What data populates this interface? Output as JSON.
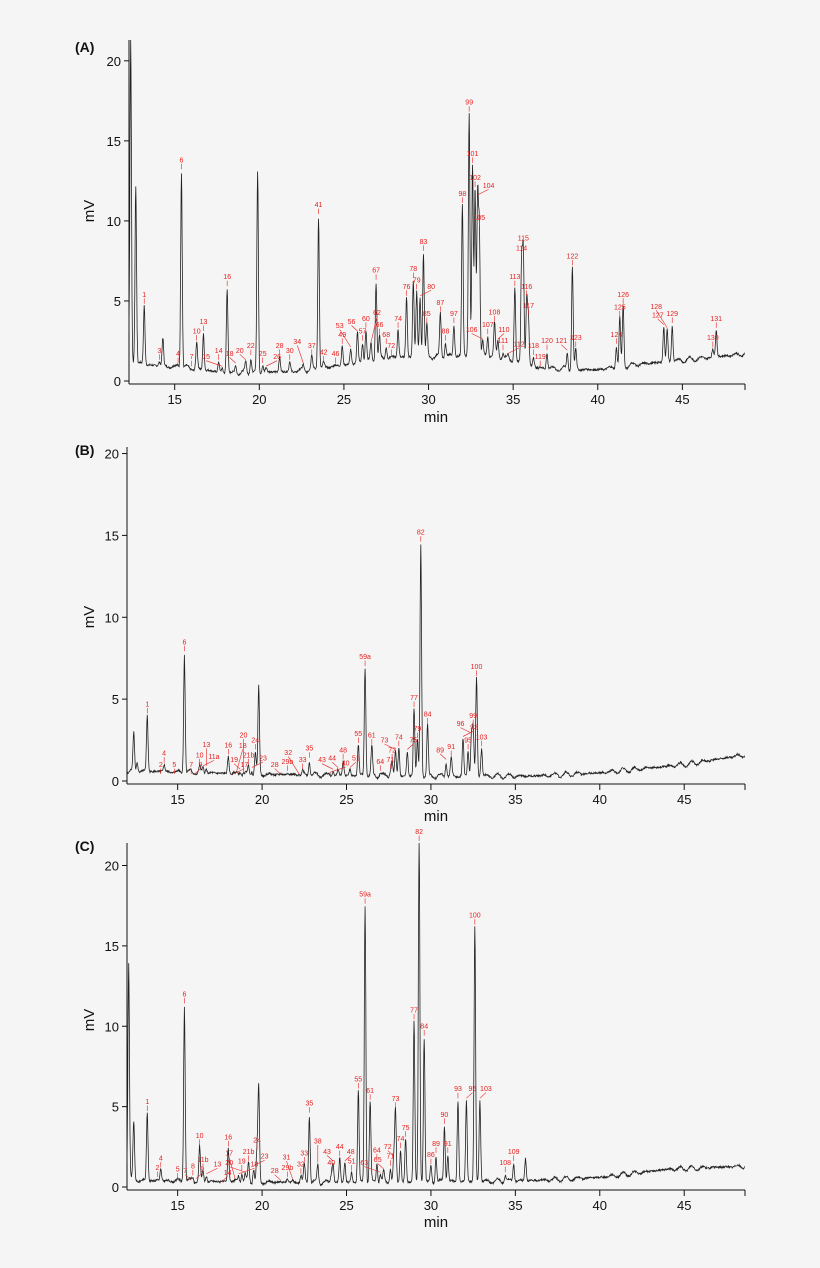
{
  "chart_data": [
    {
      "type": "line",
      "panel": "(A)",
      "xlabel": "min",
      "ylabel": "mV",
      "xlim": [
        12.3,
        48.7
      ],
      "ylim": [
        0,
        21.3
      ],
      "xticks": [
        15,
        20,
        25,
        30,
        35,
        40,
        45
      ],
      "yticks": [
        0,
        5,
        10,
        15,
        20
      ],
      "label_color": "#e8201f",
      "trace_color": "#222222",
      "baseline": [
        [
          12.3,
          1.2
        ],
        [
          13.5,
          1.0
        ],
        [
          16,
          0.8
        ],
        [
          18,
          0.5
        ],
        [
          22,
          0.6
        ],
        [
          25,
          1.0
        ],
        [
          28,
          1.5
        ],
        [
          34,
          1.6
        ],
        [
          36.5,
          0.8
        ],
        [
          40,
          0.7
        ],
        [
          42,
          1.0
        ],
        [
          45,
          1.3
        ],
        [
          48.7,
          1.7
        ]
      ],
      "peaks": [
        [
          "",
          12.4,
          21.3
        ],
        [
          "",
          12.7,
          12.3
        ],
        [
          "1",
          13.2,
          4.7
        ],
        [
          "3",
          14.1,
          1.2
        ],
        [
          "",
          14.3,
          2.7
        ],
        [
          "4",
          15.2,
          1.0
        ],
        [
          "6",
          15.4,
          13.1
        ],
        [
          "7",
          16.0,
          0.8
        ],
        [
          "10",
          16.3,
          2.4
        ],
        [
          "13",
          16.7,
          3.0
        ],
        [
          "14",
          17.6,
          1.2
        ],
        [
          "15",
          17.8,
          0.8
        ],
        [
          "16",
          18.1,
          5.8
        ],
        [
          "18",
          18.6,
          1.0
        ],
        [
          "20",
          19.2,
          1.2
        ],
        [
          "22",
          19.5,
          1.5
        ],
        [
          "",
          19.9,
          13.0
        ],
        [
          "25",
          20.2,
          1.0
        ],
        [
          "26",
          20.4,
          0.8
        ],
        [
          "28",
          21.2,
          1.5
        ],
        [
          "30",
          21.8,
          1.2
        ],
        [
          "34",
          22.6,
          1.0
        ],
        [
          "37",
          23.1,
          1.5
        ],
        [
          "41",
          23.5,
          10.3
        ],
        [
          "42",
          23.8,
          1.1
        ],
        [
          "46",
          24.5,
          1.0
        ],
        [
          "49",
          24.9,
          2.2
        ],
        [
          "53",
          25.4,
          2.0
        ],
        [
          "56",
          25.8,
          3.0
        ],
        [
          "57",
          26.1,
          2.4
        ],
        [
          "60",
          26.3,
          3.2
        ],
        [
          "62",
          26.6,
          2.3
        ],
        [
          "67",
          26.9,
          6.2
        ],
        [
          "66",
          27.1,
          2.8
        ],
        [
          "68",
          27.5,
          2.2
        ],
        [
          "72",
          27.8,
          1.5
        ],
        [
          "74",
          28.2,
          3.2
        ],
        [
          "76",
          28.7,
          5.2
        ],
        [
          "78",
          29.1,
          6.3
        ],
        [
          "79",
          29.3,
          5.6
        ],
        [
          "80",
          29.5,
          5.2
        ],
        [
          "83",
          29.7,
          8.0
        ],
        [
          "85",
          29.9,
          3.5
        ],
        [
          "87",
          30.7,
          4.2
        ],
        [
          "88",
          31.0,
          2.4
        ],
        [
          "97",
          31.5,
          3.5
        ],
        [
          "98",
          32.0,
          11.0
        ],
        [
          "99",
          32.4,
          16.7
        ],
        [
          "101",
          32.6,
          13.5
        ],
        [
          "102",
          32.75,
          12.0
        ],
        [
          "104",
          32.9,
          11.5
        ],
        [
          "105",
          33.0,
          9.5
        ],
        [
          "106",
          33.2,
          2.5
        ],
        [
          "107",
          33.5,
          2.8
        ],
        [
          "108",
          33.9,
          3.6
        ],
        [
          "110",
          34.1,
          2.5
        ],
        [
          "111",
          34.4,
          1.8
        ],
        [
          "112",
          34.7,
          1.6
        ],
        [
          "113",
          35.1,
          5.8
        ],
        [
          "114",
          35.5,
          7.6
        ],
        [
          "115",
          35.6,
          8.2
        ],
        [
          "116",
          35.8,
          5.2
        ],
        [
          "117",
          35.9,
          4.0
        ],
        [
          "118",
          36.2,
          1.5
        ],
        [
          "119",
          36.6,
          0.8
        ],
        [
          "120",
          37.0,
          1.8
        ],
        [
          "121",
          38.2,
          1.8
        ],
        [
          "122",
          38.5,
          7.1
        ],
        [
          "123",
          38.7,
          2.0
        ],
        [
          "124",
          41.1,
          2.2
        ],
        [
          "125",
          41.3,
          3.9
        ],
        [
          "126",
          41.5,
          4.7
        ],
        [
          "127",
          43.9,
          3.4
        ],
        [
          "128",
          44.1,
          3.2
        ],
        [
          "129",
          44.4,
          3.5
        ],
        [
          "130",
          46.8,
          2.0
        ],
        [
          "131",
          47.0,
          3.2
        ]
      ]
    },
    {
      "type": "line",
      "panel": "(B)",
      "xlabel": "min",
      "ylabel": "mV",
      "xlim": [
        12.0,
        48.6
      ],
      "ylim": [
        0,
        20.4
      ],
      "xticks": [
        15,
        20,
        25,
        30,
        35,
        40,
        45
      ],
      "yticks": [
        0,
        5,
        10,
        15,
        20
      ],
      "label_color": "#e8201f",
      "trace_color": "#222222",
      "baseline": [
        [
          12.0,
          0.6
        ],
        [
          13,
          0.6
        ],
        [
          20,
          0.4
        ],
        [
          30,
          0.3
        ],
        [
          36,
          0.3
        ],
        [
          40,
          0.5
        ],
        [
          45,
          1.0
        ],
        [
          48.6,
          1.6
        ]
      ],
      "peaks": [
        [
          "",
          12.4,
          2.9
        ],
        [
          "",
          12.6,
          1.2
        ],
        [
          "1",
          13.2,
          4.0
        ],
        [
          "2",
          14.0,
          0.3
        ],
        [
          "4",
          14.2,
          1.0
        ],
        [
          "5",
          14.8,
          0.3
        ],
        [
          "6",
          15.4,
          7.8
        ],
        [
          "7",
          15.8,
          0.3
        ],
        [
          "9",
          16.0,
          0.3
        ],
        [
          "10",
          16.3,
          0.9
        ],
        [
          "11a",
          16.5,
          0.8
        ],
        [
          "13",
          16.7,
          0.8
        ],
        [
          "16",
          18.0,
          1.5
        ],
        [
          "17",
          18.3,
          0.3
        ],
        [
          "18",
          18.5,
          0.5
        ],
        [
          "19",
          18.7,
          0.6
        ],
        [
          "20",
          18.9,
          0.4
        ],
        [
          "21b",
          19.2,
          0.9
        ],
        [
          "23",
          19.4,
          0.7
        ],
        [
          "24",
          19.6,
          1.8
        ],
        [
          "",
          19.8,
          5.7
        ],
        [
          "28",
          21.1,
          0.3
        ],
        [
          "29b",
          21.5,
          0.5
        ],
        [
          "32",
          22.2,
          0.3
        ],
        [
          "33",
          22.4,
          0.6
        ],
        [
          "35",
          22.8,
          1.3
        ],
        [
          "40",
          24.0,
          0.4
        ],
        [
          "43",
          24.2,
          0.6
        ],
        [
          "44",
          24.5,
          0.7
        ],
        [
          "48",
          24.8,
          1.2
        ],
        [
          "51",
          25.2,
          0.7
        ],
        [
          "55",
          25.7,
          2.2
        ],
        [
          "59a",
          26.1,
          6.9
        ],
        [
          "61",
          26.5,
          2.1
        ],
        [
          "64",
          27.0,
          0.5
        ],
        [
          "71",
          27.6,
          0.6
        ],
        [
          "72",
          27.7,
          1.2
        ],
        [
          "73",
          27.9,
          1.8
        ],
        [
          "74",
          28.1,
          2.0
        ],
        [
          "75",
          28.6,
          1.8
        ],
        [
          "77",
          29.0,
          4.4
        ],
        [
          "79",
          29.2,
          2.5
        ],
        [
          "82",
          29.4,
          14.5
        ],
        [
          "84",
          29.8,
          3.4
        ],
        [
          "89",
          30.9,
          1.2
        ],
        [
          "91",
          31.2,
          1.4
        ],
        [
          "93",
          31.9,
          2.6
        ],
        [
          "95",
          32.2,
          1.8
        ],
        [
          "96",
          32.4,
          2.8
        ],
        [
          "99",
          32.5,
          3.3
        ],
        [
          "100",
          32.7,
          6.3
        ],
        [
          "103",
          33.0,
          2.0
        ]
      ]
    },
    {
      "type": "line",
      "panel": "(C)",
      "xlabel": "min",
      "ylabel": "mV",
      "xlim": [
        12.0,
        48.6
      ],
      "ylim": [
        0,
        21.4
      ],
      "xticks": [
        15,
        20,
        25,
        30,
        35,
        40,
        45
      ],
      "yticks": [
        0,
        5,
        10,
        15,
        20
      ],
      "label_color": "#e8201f",
      "trace_color": "#222222",
      "baseline": [
        [
          12.0,
          0.5
        ],
        [
          13,
          0.4
        ],
        [
          20,
          0.3
        ],
        [
          30,
          0.3
        ],
        [
          36,
          0.4
        ],
        [
          40,
          0.6
        ],
        [
          44,
          1.1
        ],
        [
          48.6,
          1.3
        ]
      ],
      "peaks": [
        [
          "",
          12.1,
          14.0
        ],
        [
          "",
          12.4,
          4.0
        ],
        [
          "1",
          13.2,
          4.6
        ],
        [
          "2",
          13.8,
          0.5
        ],
        [
          "4",
          14.0,
          1.1
        ],
        [
          "5",
          15.0,
          0.4
        ],
        [
          "6",
          15.4,
          11.3
        ],
        [
          "7",
          15.8,
          0.3
        ],
        [
          "8",
          15.9,
          0.6
        ],
        [
          "9",
          16.1,
          0.4
        ],
        [
          "10",
          16.3,
          2.5
        ],
        [
          "11b",
          16.5,
          1.0
        ],
        [
          "13",
          16.7,
          0.7
        ],
        [
          "14",
          17.6,
          0.2
        ],
        [
          "16",
          18.0,
          2.4
        ],
        [
          "17",
          18.4,
          0.4
        ],
        [
          "18",
          18.6,
          0.7
        ],
        [
          "19",
          18.8,
          0.9
        ],
        [
          "20",
          19.0,
          0.8
        ],
        [
          "21b",
          19.2,
          1.5
        ],
        [
          "23",
          19.5,
          1.2
        ],
        [
          "24",
          19.7,
          2.2
        ],
        [
          "",
          19.8,
          6.2
        ],
        [
          "28",
          21.1,
          0.3
        ],
        [
          "29b",
          21.5,
          0.5
        ],
        [
          "31",
          21.8,
          0.4
        ],
        [
          "32",
          22.3,
          0.7
        ],
        [
          "33",
          22.5,
          1.4
        ],
        [
          "35",
          22.8,
          4.5
        ],
        [
          "38",
          23.3,
          1.4
        ],
        [
          "40",
          24.1,
          0.8
        ],
        [
          "43",
          24.2,
          1.5
        ],
        [
          "44",
          24.6,
          1.8
        ],
        [
          "48",
          24.9,
          1.5
        ],
        [
          "51",
          25.3,
          0.9
        ],
        [
          "55",
          25.7,
          6.0
        ],
        [
          "59a",
          26.1,
          17.5
        ],
        [
          "61",
          26.4,
          5.3
        ],
        [
          "64",
          26.8,
          1.6
        ],
        [
          "63",
          27.0,
          0.8
        ],
        [
          "65",
          27.2,
          1.0
        ],
        [
          "71",
          27.6,
          1.2
        ],
        [
          "72",
          27.8,
          1.8
        ],
        [
          "73",
          27.9,
          4.8
        ],
        [
          "74",
          28.2,
          2.3
        ],
        [
          "75",
          28.5,
          3.0
        ],
        [
          "77",
          29.0,
          10.3
        ],
        [
          "82",
          29.3,
          21.4
        ],
        [
          "84",
          29.6,
          9.3
        ],
        [
          "86",
          30.0,
          1.3
        ],
        [
          "89",
          30.3,
          2.0
        ],
        [
          "90",
          30.8,
          3.8
        ],
        [
          "91",
          31.0,
          2.0
        ],
        [
          "93",
          31.6,
          5.4
        ],
        [
          "95",
          32.1,
          5.4
        ],
        [
          "100",
          32.6,
          16.2
        ],
        [
          "103",
          32.9,
          5.4
        ],
        [
          "108",
          34.4,
          0.8
        ],
        [
          "109",
          34.9,
          1.5
        ],
        [
          "",
          35.6,
          1.8
        ]
      ]
    }
  ]
}
